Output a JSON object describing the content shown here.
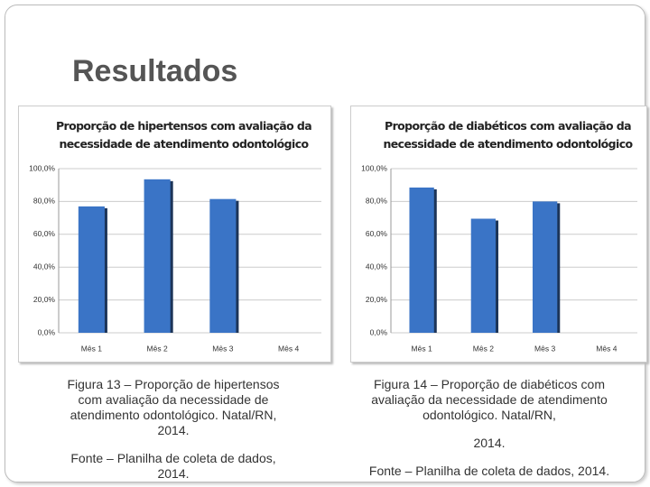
{
  "title": "Resultados",
  "chart_data": [
    {
      "type": "bar",
      "title": "Proporção de hipertensos com avaliação da necessidade de atendimento odontológico",
      "categories": [
        "Mês 1",
        "Mês 2",
        "Mês 3",
        "Mês 4"
      ],
      "values": [
        77,
        93.5,
        81.5,
        null
      ],
      "color": "#3a74c6",
      "ylim": [
        0,
        100
      ],
      "yticks": [
        {
          "value": 0,
          "label": "0,0%"
        },
        {
          "value": 20,
          "label": "20,0%"
        },
        {
          "value": 40,
          "label": "40,0%"
        },
        {
          "value": 60,
          "label": "60,0%"
        },
        {
          "value": 80,
          "label": "80,0%"
        },
        {
          "value": 100,
          "label": "100,0%"
        }
      ],
      "grid": true
    },
    {
      "type": "bar",
      "title": "Proporção de diabéticos com avaliação da necessidade de atendimento odontológico",
      "categories": [
        "Mês 1",
        "Mês 2",
        "Mês 3",
        "Mês 4"
      ],
      "values": [
        88.5,
        69.5,
        80,
        null
      ],
      "color": "#3a74c6",
      "ylim": [
        0,
        100
      ],
      "yticks": [
        {
          "value": 0,
          "label": "0,0%"
        },
        {
          "value": 20,
          "label": "20,0%"
        },
        {
          "value": 40,
          "label": "40,0%"
        },
        {
          "value": 60,
          "label": "60,0%"
        },
        {
          "value": 80,
          "label": "80,0%"
        },
        {
          "value": 100,
          "label": "100,0%"
        }
      ],
      "grid": true
    }
  ],
  "captions": [
    {
      "figure": "Figura 13 – Proporção de hipertensos com avaliação da necessidade de atendimento odontológico. Natal/RN, 2014.",
      "source": "Fonte – Planilha de coleta de dados, 2014."
    },
    {
      "figure": "Figura 14 – Proporção de diabéticos com avaliação da necessidade de atendimento odontológico. Natal/RN,",
      "year": "2014.",
      "source": "Fonte – Planilha de coleta de dados, 2014."
    }
  ]
}
